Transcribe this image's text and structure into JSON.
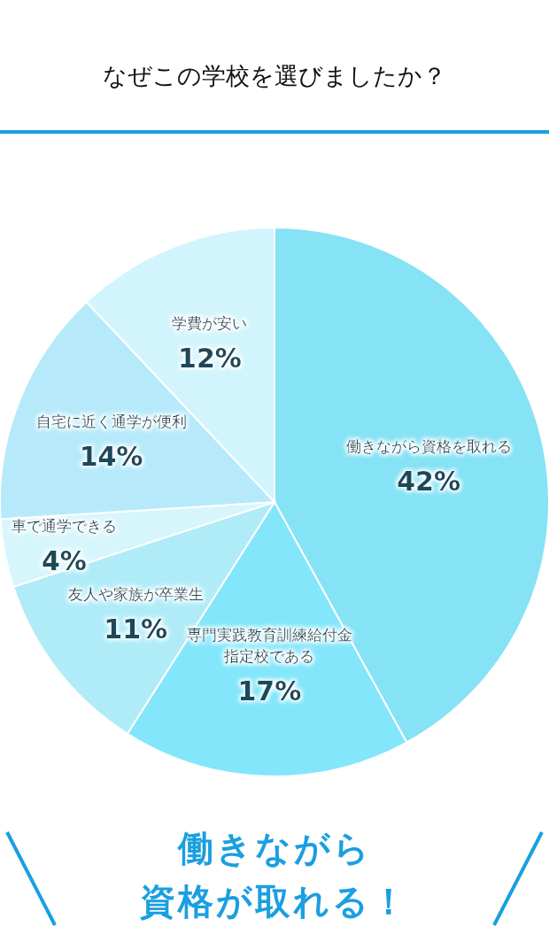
{
  "chart_data": {
    "type": "pie",
    "title": "なぜこの学校を選びましたか？",
    "categories": [
      "働きながら資格を取れる",
      "専門実践教育訓練給付金指定校である",
      "友人や家族が卒業生",
      "車で通学できる",
      "自宅に近く通学が便利",
      "学費が安い"
    ],
    "values": [
      42,
      17,
      11,
      4,
      14,
      12
    ],
    "colors": [
      "#86e2f5",
      "#84e6fb",
      "#b0ecf8",
      "#d6f6fc",
      "#b6eafa",
      "#d2f4fc"
    ],
    "value_labels": [
      "42%",
      "17%",
      "11%",
      "4%",
      "14%",
      "12%"
    ],
    "annotations": [
      "働きながら資格が取れる！"
    ]
  }
}
